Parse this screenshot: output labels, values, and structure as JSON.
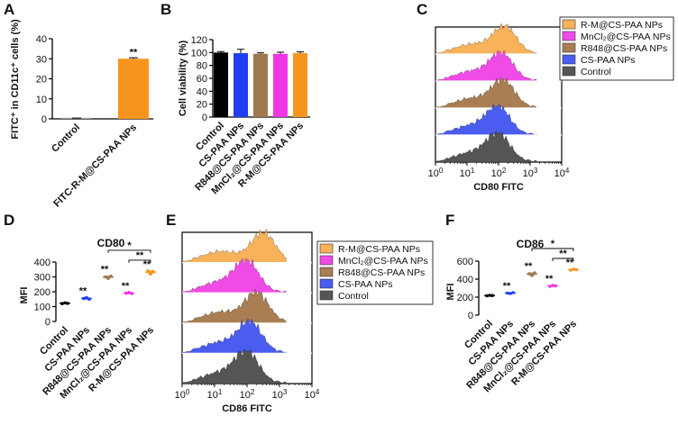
{
  "panel_labels": {
    "a": "A",
    "b": "B",
    "c": "C",
    "d": "D",
    "e": "E",
    "f": "F"
  },
  "chart_data": [
    {
      "id": "A",
      "type": "bar",
      "title": "",
      "ylabel": "FITC⁺ in CD11c⁺ cells (%)",
      "categories": [
        "Control",
        "FITC-R-M@CS-PAA NPs"
      ],
      "values": [
        0.3,
        30
      ],
      "error": [
        0.1,
        0.5
      ],
      "colors": [
        "#9e9e9e",
        "#f7941d"
      ],
      "ylim": [
        0,
        40
      ],
      "yticks": [
        "0",
        "10",
        "20",
        "30",
        "40"
      ],
      "annotations": [
        "",
        "**"
      ]
    },
    {
      "id": "B",
      "type": "bar",
      "title": "",
      "ylabel": "Cell viability (%)",
      "categories": [
        "Control",
        "CS-PAA NPs",
        "R848@CS-PAA NPs",
        "MnCl₂@CS-PAA NPs",
        "R-M@CS-PAA NPs"
      ],
      "values": [
        100,
        99,
        98,
        98,
        99
      ],
      "error": [
        1.5,
        6,
        1.5,
        2.5,
        2
      ],
      "colors": [
        "#000000",
        "#1f3df2",
        "#a07a4e",
        "#f035e6",
        "#f7941d"
      ],
      "ylim": [
        0,
        120
      ],
      "yticks": [
        "0",
        "20",
        "40",
        "60",
        "80",
        "100",
        "120"
      ]
    },
    {
      "id": "C",
      "type": "area",
      "title": "",
      "xlabel": "CD80 FITC",
      "xtick_labels": [
        {
          "b": "10",
          "e": "0"
        },
        {
          "b": "10",
          "e": "1"
        },
        {
          "b": "10",
          "e": "2"
        },
        {
          "b": "10",
          "e": "3"
        },
        {
          "b": "10",
          "e": "4"
        }
      ],
      "series": [
        {
          "name": "R-M@CS-PAA NPs",
          "color": "#f8b25a",
          "peak_log": 2.2
        },
        {
          "name": "MnCl₂@CS-PAA NPs",
          "color": "#f04be6",
          "peak_log": 2.1
        },
        {
          "name": "R848@CS-PAA NPs",
          "color": "#a87e52",
          "peak_log": 2.15
        },
        {
          "name": "CS-PAA NPs",
          "color": "#4a5df0",
          "peak_log": 2.0
        },
        {
          "name": "Control",
          "color": "#555555",
          "peak_log": 2.0
        }
      ]
    },
    {
      "id": "D",
      "type": "scatter",
      "title": "CD80",
      "ylabel": "MFI",
      "categories": [
        "Control",
        "CS-PAA NPs",
        "R848@CS-PAA NPs",
        "MnCl₂@CS-PAA NPs",
        "R-M@CS-PAA NPs"
      ],
      "values": [
        [
          120,
          125,
          122
        ],
        [
          155,
          160,
          150
        ],
        [
          300,
          290,
          305
        ],
        [
          190,
          195,
          188
        ],
        [
          340,
          320,
          335
        ]
      ],
      "colors": [
        "#000000",
        "#1f3df2",
        "#a07a4e",
        "#f035e6",
        "#f7941d"
      ],
      "ylim": [
        0,
        400
      ],
      "yticks": [
        "0",
        "100",
        "200",
        "300",
        "400"
      ],
      "point_sig": [
        "",
        "**",
        "**",
        "**",
        "**"
      ],
      "brackets": [
        {
          "from": 3,
          "to": 4,
          "label": "**"
        },
        {
          "from": 2,
          "to": 4,
          "label": "*"
        }
      ]
    },
    {
      "id": "E",
      "type": "area",
      "title": "",
      "xlabel": "CD86 FITC",
      "xtick_labels": [
        {
          "b": "10",
          "e": "0"
        },
        {
          "b": "10",
          "e": "1"
        },
        {
          "b": "10",
          "e": "2"
        },
        {
          "b": "10",
          "e": "3"
        },
        {
          "b": "10",
          "e": "4"
        }
      ],
      "series": [
        {
          "name": "R-M@CS-PAA NPs",
          "color": "#f8b25a",
          "peak_log": 2.5
        },
        {
          "name": "MnCl₂@CS-PAA NPs",
          "color": "#f04be6",
          "peak_log": 2.0
        },
        {
          "name": "R848@CS-PAA NPs",
          "color": "#a87e52",
          "peak_log": 2.3
        },
        {
          "name": "CS-PAA NPs",
          "color": "#4a5df0",
          "peak_log": 2.1
        },
        {
          "name": "Control",
          "color": "#555555",
          "peak_log": 2.0
        }
      ]
    },
    {
      "id": "F",
      "type": "scatter",
      "title": "CD86",
      "ylabel": "MFI",
      "categories": [
        "Control",
        "CS-PAA NPs",
        "R848@CS-PAA NPs",
        "MnCl₂@CS-PAA NPs",
        "R-M@CS-PAA NPs"
      ],
      "values": [
        [
          215,
          220,
          218
        ],
        [
          245,
          240,
          250
        ],
        [
          460,
          440,
          470
        ],
        [
          320,
          330,
          325
        ],
        [
          500,
          510,
          505
        ]
      ],
      "colors": [
        "#000000",
        "#1f3df2",
        "#a07a4e",
        "#f035e6",
        "#f7941d"
      ],
      "ylim": [
        0,
        600
      ],
      "yticks": [
        "0",
        "200",
        "400",
        "600"
      ],
      "point_sig": [
        "",
        "**",
        "**",
        "**",
        "**"
      ],
      "brackets": [
        {
          "from": 3,
          "to": 4,
          "label": "**"
        },
        {
          "from": 2,
          "to": 4,
          "label": "*"
        }
      ]
    }
  ]
}
